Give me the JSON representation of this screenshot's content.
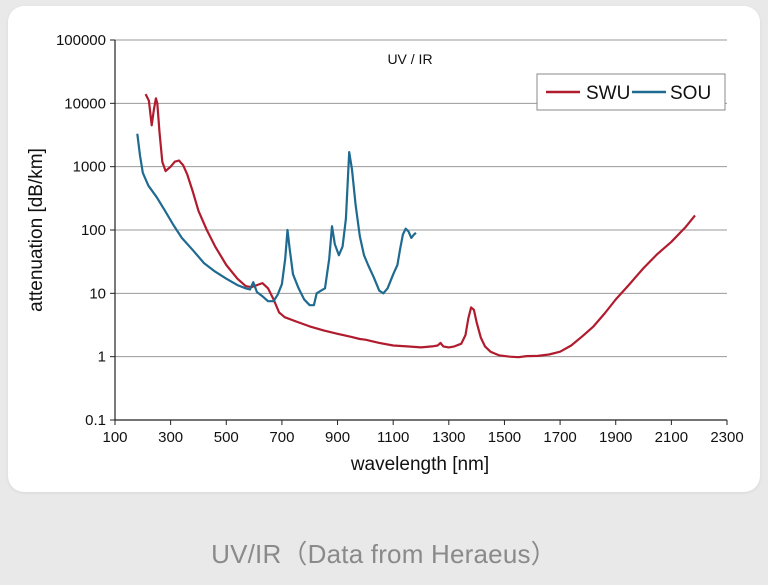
{
  "caption": "UV/IR（Data from Heraeus）",
  "chart_data": {
    "type": "line",
    "title": "UV / IR",
    "xlabel": "wavelength [nm]",
    "ylabel": "attenuation [dB/km]",
    "xlim": [
      100,
      2300
    ],
    "ylim": [
      0.1,
      100000
    ],
    "yscale": "log",
    "xticks": [
      100,
      300,
      500,
      700,
      900,
      1100,
      1300,
      1500,
      1700,
      1900,
      2100,
      2300
    ],
    "yticks": [
      0.1,
      1,
      10,
      100,
      1000,
      10000,
      100000
    ],
    "ytick_labels": [
      "0.1",
      "1",
      "10",
      "100",
      "1000",
      "10000",
      "100000"
    ],
    "grid": "horizontal",
    "legend_position": "top-right",
    "series": [
      {
        "name": "SWU",
        "color": "#b01c2e",
        "points": [
          [
            210,
            14000
          ],
          [
            222,
            11000
          ],
          [
            232,
            4500
          ],
          [
            240,
            8000
          ],
          [
            247,
            12000
          ],
          [
            252,
            10000
          ],
          [
            260,
            3500
          ],
          [
            270,
            1200
          ],
          [
            282,
            850
          ],
          [
            300,
            1000
          ],
          [
            315,
            1200
          ],
          [
            330,
            1250
          ],
          [
            345,
            1050
          ],
          [
            360,
            750
          ],
          [
            380,
            400
          ],
          [
            400,
            200
          ],
          [
            430,
            100
          ],
          [
            460,
            55
          ],
          [
            500,
            28
          ],
          [
            540,
            17
          ],
          [
            570,
            13
          ],
          [
            590,
            12.5
          ],
          [
            610,
            13.5
          ],
          [
            630,
            14.5
          ],
          [
            650,
            12
          ],
          [
            670,
            8
          ],
          [
            690,
            5
          ],
          [
            710,
            4.2
          ],
          [
            750,
            3.6
          ],
          [
            800,
            3.0
          ],
          [
            850,
            2.6
          ],
          [
            900,
            2.3
          ],
          [
            950,
            2.05
          ],
          [
            980,
            1.9
          ],
          [
            1000,
            1.85
          ],
          [
            1050,
            1.65
          ],
          [
            1100,
            1.5
          ],
          [
            1150,
            1.45
          ],
          [
            1200,
            1.4
          ],
          [
            1240,
            1.45
          ],
          [
            1260,
            1.5
          ],
          [
            1270,
            1.65
          ],
          [
            1280,
            1.45
          ],
          [
            1300,
            1.4
          ],
          [
            1320,
            1.45
          ],
          [
            1345,
            1.6
          ],
          [
            1360,
            2.2
          ],
          [
            1370,
            4.0
          ],
          [
            1380,
            6.0
          ],
          [
            1390,
            5.5
          ],
          [
            1400,
            3.5
          ],
          [
            1415,
            2.0
          ],
          [
            1430,
            1.45
          ],
          [
            1450,
            1.2
          ],
          [
            1480,
            1.05
          ],
          [
            1520,
            1.0
          ],
          [
            1550,
            0.98
          ],
          [
            1580,
            1.02
          ],
          [
            1620,
            1.03
          ],
          [
            1660,
            1.08
          ],
          [
            1700,
            1.2
          ],
          [
            1740,
            1.5
          ],
          [
            1780,
            2.1
          ],
          [
            1820,
            3.0
          ],
          [
            1860,
            4.8
          ],
          [
            1900,
            8
          ],
          [
            1950,
            14
          ],
          [
            2000,
            25
          ],
          [
            2050,
            42
          ],
          [
            2100,
            65
          ],
          [
            2150,
            110
          ],
          [
            2185,
            170
          ]
        ]
      },
      {
        "name": "SOU",
        "color": "#1f6a90",
        "points": [
          [
            180,
            3300
          ],
          [
            190,
            1500
          ],
          [
            200,
            800
          ],
          [
            220,
            500
          ],
          [
            250,
            330
          ],
          [
            280,
            200
          ],
          [
            310,
            120
          ],
          [
            340,
            75
          ],
          [
            380,
            48
          ],
          [
            420,
            30
          ],
          [
            460,
            22
          ],
          [
            500,
            17
          ],
          [
            540,
            13.5
          ],
          [
            570,
            12
          ],
          [
            585,
            11.5
          ],
          [
            597,
            15
          ],
          [
            610,
            10.5
          ],
          [
            630,
            9
          ],
          [
            650,
            7.5
          ],
          [
            670,
            7.5
          ],
          [
            685,
            9.5
          ],
          [
            700,
            14
          ],
          [
            712,
            35
          ],
          [
            720,
            100
          ],
          [
            728,
            50
          ],
          [
            740,
            20
          ],
          [
            760,
            12
          ],
          [
            780,
            8
          ],
          [
            800,
            6.5
          ],
          [
            815,
            6.5
          ],
          [
            825,
            10
          ],
          [
            840,
            11
          ],
          [
            855,
            12
          ],
          [
            870,
            35
          ],
          [
            880,
            115
          ],
          [
            890,
            60
          ],
          [
            905,
            40
          ],
          [
            918,
            55
          ],
          [
            930,
            150
          ],
          [
            942,
            1700
          ],
          [
            952,
            900
          ],
          [
            965,
            250
          ],
          [
            980,
            80
          ],
          [
            995,
            40
          ],
          [
            1010,
            28
          ],
          [
            1030,
            18
          ],
          [
            1050,
            11
          ],
          [
            1065,
            10
          ],
          [
            1080,
            12
          ],
          [
            1100,
            20
          ],
          [
            1115,
            28
          ],
          [
            1125,
            50
          ],
          [
            1135,
            85
          ],
          [
            1145,
            105
          ],
          [
            1155,
            95
          ],
          [
            1165,
            75
          ],
          [
            1175,
            85
          ],
          [
            1182,
            90
          ]
        ]
      }
    ]
  }
}
